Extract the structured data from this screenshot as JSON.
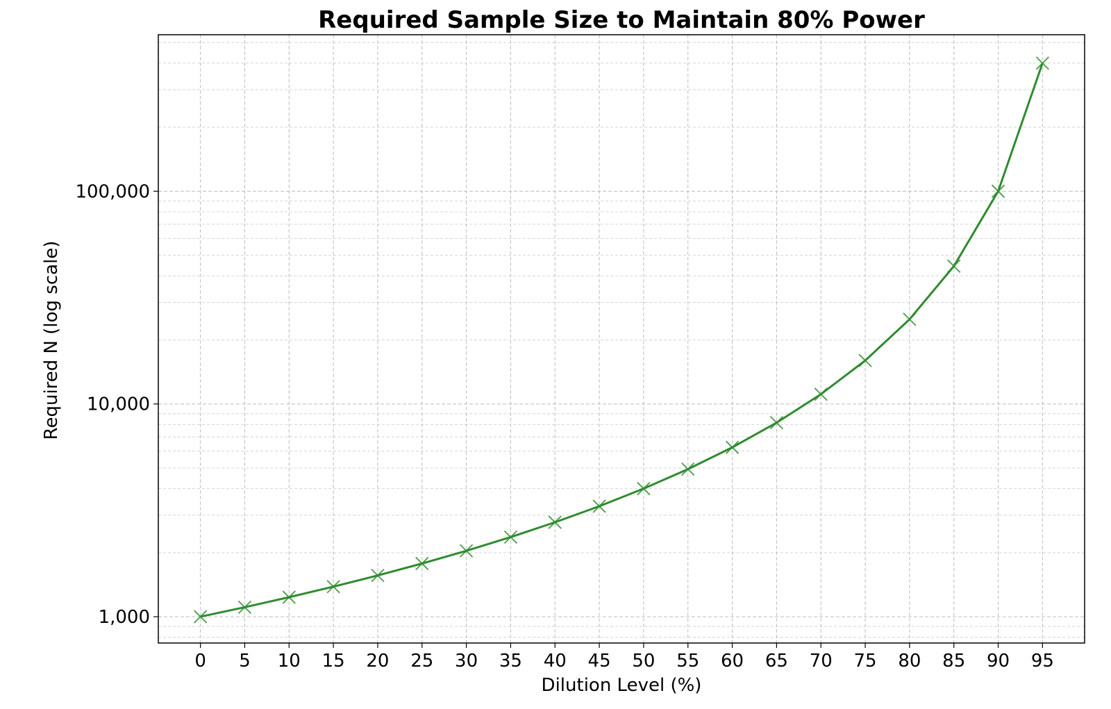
{
  "chart_data": {
    "type": "line",
    "title": "Required Sample Size to Maintain 80% Power",
    "x_label": "Dilution Level (%)",
    "y_label": "Required N (log scale)",
    "x": [
      0,
      5,
      10,
      15,
      20,
      25,
      30,
      35,
      40,
      45,
      50,
      55,
      60,
      65,
      70,
      75,
      80,
      85,
      90,
      95
    ],
    "series": [
      {
        "name": "Required N",
        "color": "#2e8b2e",
        "marker": "x",
        "values": [
          1000,
          1108,
          1235,
          1384,
          1563,
          1778,
          2041,
          2367,
          2778,
          3306,
          4000,
          4938,
          6250,
          8163,
          11111,
          16000,
          25000,
          44444,
          100000,
          400000
        ]
      }
    ],
    "xlim": [
      -4.75,
      99.75
    ],
    "xticks": [
      0,
      5,
      10,
      15,
      20,
      25,
      30,
      35,
      40,
      45,
      50,
      55,
      60,
      65,
      70,
      75,
      80,
      85,
      90,
      95
    ],
    "ylim": [
      752,
      544000
    ],
    "y_log": true,
    "yticks": [
      {
        "value": 1000,
        "label": "1,000"
      },
      {
        "value": 10000,
        "label": "10,000"
      },
      {
        "value": 100000,
        "label": "100,000"
      }
    ],
    "yticks_minor": [
      800,
      900,
      2000,
      3000,
      4000,
      5000,
      6000,
      7000,
      8000,
      9000,
      20000,
      30000,
      40000,
      50000,
      60000,
      70000,
      80000,
      90000,
      200000,
      300000,
      400000,
      500000
    ],
    "grid": true
  }
}
